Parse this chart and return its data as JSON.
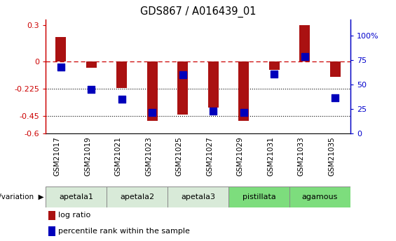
{
  "title": "GDS867 / A016439_01",
  "categories": [
    "GSM21017",
    "GSM21019",
    "GSM21021",
    "GSM21023",
    "GSM21025",
    "GSM21027",
    "GSM21029",
    "GSM21031",
    "GSM21033",
    "GSM21035"
  ],
  "log_ratio": [
    0.2,
    -0.05,
    -0.22,
    -0.49,
    -0.44,
    -0.38,
    -0.49,
    -0.07,
    0.3,
    -0.13
  ],
  "percentile_rank": [
    68,
    45,
    35,
    22,
    60,
    23,
    22,
    61,
    79,
    37
  ],
  "groups": [
    {
      "label": "apetala1",
      "start": 0,
      "end": 2,
      "color": "#d8ead8"
    },
    {
      "label": "apetala2",
      "start": 2,
      "end": 4,
      "color": "#d8ead8"
    },
    {
      "label": "apetala3",
      "start": 4,
      "end": 6,
      "color": "#d8ead8"
    },
    {
      "label": "pistillata",
      "start": 6,
      "end": 8,
      "color": "#7ddd7d"
    },
    {
      "label": "agamous",
      "start": 8,
      "end": 10,
      "color": "#7ddd7d"
    }
  ],
  "ylim_left": [
    -0.6,
    0.35
  ],
  "ylim_right": [
    0,
    116.67
  ],
  "yticks_left": [
    0.3,
    0.0,
    -0.225,
    -0.45,
    -0.6
  ],
  "ytick_labels_left": [
    "0.3",
    "0",
    "-0.225",
    "-0.45",
    "-0.6"
  ],
  "yticks_right": [
    100,
    75,
    50,
    25,
    0
  ],
  "ytick_labels_right": [
    "100%",
    "75",
    "50",
    "25",
    "0"
  ],
  "hline_y": 0,
  "dotted_lines": [
    -0.225,
    -0.45
  ],
  "bar_color": "#aa1111",
  "dot_color": "#0000bb",
  "bar_width": 0.35,
  "dot_size": 45,
  "left_axis_color": "#cc0000",
  "right_axis_color": "#0000cc",
  "bg_color": "#ffffff",
  "legend_items": [
    {
      "label": "log ratio",
      "color": "#aa1111"
    },
    {
      "label": "percentile rank within the sample",
      "color": "#0000bb"
    }
  ]
}
